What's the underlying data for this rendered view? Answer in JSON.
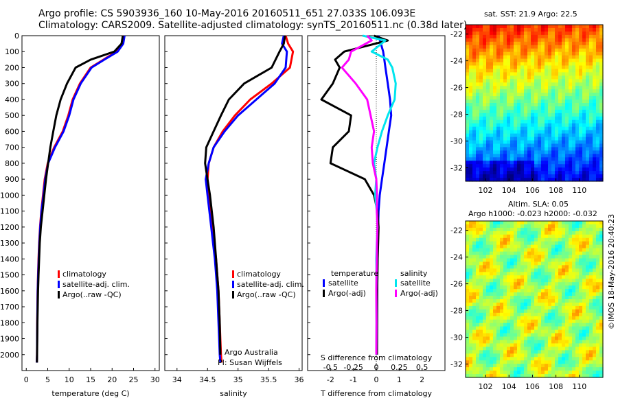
{
  "header": {
    "title_line1": "Argo profile: CS 5903936_160 10-May-2016 20160511_651 27.033S 106.093E",
    "title_line2": "Climatology: CARS2009. Satellite-adjusted climatology: synTS_20160511.nc (0.38d later)"
  },
  "colors": {
    "climatology": "#ff0000",
    "satellite": "#0000ff",
    "argo": "#000000",
    "salinity_sat": "#00e5ee",
    "salinity_argo": "#ff00ff"
  },
  "chart_data": [
    {
      "type": "line",
      "id": "temperature",
      "xlabel": "temperature (deg C)",
      "ylabel": "",
      "xlim": [
        -1,
        31
      ],
      "ylim": [
        2100,
        0
      ],
      "xticks": [
        "0",
        "5",
        "10",
        "15",
        "20",
        "25",
        "30"
      ],
      "yticks": [
        "0",
        "100",
        "200",
        "300",
        "400",
        "500",
        "600",
        "700",
        "800",
        "900",
        "1000",
        "1100",
        "1200",
        "1300",
        "1400",
        "1500",
        "1600",
        "1700",
        "1800",
        "1900",
        "2000"
      ],
      "legend": [
        "climatology",
        "satellite-adj. clim.",
        "Argo(..raw -QC)"
      ],
      "legend_position": "bottom-center",
      "series": [
        {
          "name": "climatology",
          "color": "#ff0000",
          "x": [
            22.6,
            22.3,
            21,
            18,
            15,
            12.5,
            10.8,
            9.8,
            8.5,
            6.5,
            5,
            4.3,
            3.9,
            3.5,
            3.2,
            3,
            2.85,
            2.75,
            2.65,
            2.55,
            2.5,
            2.45
          ],
          "y": [
            0,
            50,
            100,
            150,
            200,
            300,
            400,
            500,
            600,
            700,
            800,
            900,
            1000,
            1100,
            1200,
            1300,
            1400,
            1500,
            1600,
            1800,
            2000,
            2050
          ]
        },
        {
          "name": "satellite-adj. clim.",
          "color": "#0000ff",
          "x": [
            22.9,
            22.6,
            21.3,
            18.2,
            15.2,
            12.7,
            11,
            10,
            8.7,
            6.7,
            5.1,
            4.4,
            4,
            3.55,
            3.25,
            3.05,
            2.9,
            2.78,
            2.67,
            2.56,
            2.5,
            2.45
          ],
          "y": [
            0,
            50,
            100,
            150,
            200,
            300,
            400,
            500,
            600,
            700,
            800,
            900,
            1000,
            1100,
            1200,
            1300,
            1400,
            1500,
            1600,
            1800,
            2000,
            2050
          ]
        },
        {
          "name": "Argo(..raw -QC)",
          "color": "#000000",
          "x": [
            22.5,
            22.2,
            20.5,
            15,
            11.5,
            9.5,
            8,
            7,
            6.3,
            5.6,
            5.1,
            4.6,
            4.2,
            3.8,
            3.4,
            3.15,
            3,
            2.85,
            2.75,
            2.6,
            2.52,
            2.48
          ],
          "y": [
            0,
            50,
            100,
            150,
            200,
            300,
            400,
            500,
            600,
            700,
            800,
            900,
            1000,
            1100,
            1200,
            1300,
            1400,
            1500,
            1600,
            1800,
            2000,
            2050
          ]
        }
      ]
    },
    {
      "type": "line",
      "id": "salinity",
      "xlabel": "salinity",
      "ylabel": "",
      "xlim": [
        33.8,
        36.05
      ],
      "ylim": [
        2100,
        0
      ],
      "xticks": [
        "34",
        "34.5",
        "35",
        "35.5",
        "36"
      ],
      "legend": [
        "climatology",
        "satellite-adj. clim.",
        "Argo(..raw -QC)"
      ],
      "legend_position": "bottom-right",
      "annotation": [
        "Argo Australia",
        "PI: Susan Wijffels"
      ],
      "series": [
        {
          "name": "climatology",
          "color": "#ff0000",
          "x": [
            35.78,
            35.82,
            35.9,
            35.85,
            35.55,
            35.2,
            34.95,
            34.75,
            34.6,
            34.52,
            34.5,
            34.52,
            34.55,
            34.58,
            34.61,
            34.64,
            34.66,
            34.68,
            34.7,
            34.72,
            34.73
          ],
          "y": [
            0,
            50,
            100,
            200,
            300,
            400,
            500,
            600,
            700,
            800,
            900,
            1000,
            1100,
            1200,
            1300,
            1400,
            1500,
            1600,
            1800,
            2000,
            2050
          ]
        },
        {
          "name": "satellite-adj. clim.",
          "color": "#0000ff",
          "x": [
            35.75,
            35.72,
            35.8,
            35.78,
            35.6,
            35.3,
            35,
            34.78,
            34.6,
            34.52,
            34.47,
            34.5,
            34.53,
            34.56,
            34.59,
            34.62,
            34.64,
            34.66,
            34.68,
            34.7,
            34.71
          ],
          "y": [
            0,
            50,
            100,
            200,
            300,
            400,
            500,
            600,
            700,
            800,
            900,
            1000,
            1100,
            1200,
            1300,
            1400,
            1500,
            1600,
            1800,
            2000,
            2050
          ]
        },
        {
          "name": "Argo(..raw -QC)",
          "color": "#000000",
          "x": [
            35.77,
            35.75,
            35.68,
            35.55,
            35.1,
            34.85,
            34.72,
            34.6,
            34.48,
            34.46,
            34.5,
            34.54,
            34.57,
            34.6,
            34.62,
            34.64,
            34.66,
            34.68,
            34.7,
            34.71
          ],
          "y": [
            0,
            50,
            100,
            200,
            300,
            400,
            500,
            600,
            700,
            800,
            900,
            1000,
            1100,
            1200,
            1300,
            1400,
            1500,
            1600,
            1800,
            2000
          ]
        }
      ]
    },
    {
      "type": "line",
      "id": "difference",
      "xlabel": "T difference from climatology",
      "top_label": "S difference from climatology",
      "xlim": [
        -3,
        3
      ],
      "ylim": [
        2100,
        0
      ],
      "xticks": [
        "-2",
        "-1",
        "0",
        "1",
        "2"
      ],
      "sticks": [
        "-0.5",
        "-0.25",
        "0",
        "0.25",
        "0.5"
      ],
      "legend_headers": [
        "temperature",
        "salinity"
      ],
      "legend": [
        "satellite",
        "Argo(-adj)",
        "satellite",
        "Argo(-adj)"
      ],
      "legend_position": "bottom-center",
      "series": [
        {
          "name": "temperature satellite",
          "color": "#0000ff",
          "x": [
            0.1,
            0.2,
            0.3,
            0.35,
            0.4,
            0.5,
            0.6,
            0.65,
            0.55,
            0.45,
            0.35,
            0.25,
            0.15,
            0.1,
            0.08,
            0.06,
            0.05,
            0.04,
            0.04,
            0.03,
            0.03
          ],
          "y": [
            0,
            50,
            100,
            150,
            200,
            300,
            400,
            500,
            600,
            700,
            800,
            900,
            1000,
            1100,
            1200,
            1300,
            1400,
            1500,
            1600,
            1800,
            2000
          ]
        },
        {
          "name": "temperature Argo(-adj)",
          "color": "#000000",
          "x": [
            -0.1,
            0.5,
            -1.4,
            -1.8,
            -1.6,
            -1.9,
            -2.4,
            -1.1,
            -1.2,
            -1.9,
            -2,
            -0.5,
            -0.1,
            0.05,
            0.1,
            0.08,
            0.06,
            0.05,
            0.04,
            0.04,
            0.03
          ],
          "y": [
            0,
            30,
            100,
            150,
            200,
            300,
            400,
            500,
            600,
            700,
            800,
            900,
            1000,
            1100,
            1200,
            1300,
            1400,
            1500,
            1600,
            1800,
            2000
          ]
        },
        {
          "name": "salinity satellite",
          "color": "#00e5ee",
          "x": [
            -0.6,
            0.4,
            -0.2,
            0.5,
            0.7,
            0.85,
            0.8,
            0.5,
            0.25,
            0.05,
            -0.1,
            0,
            -0.05,
            0.02,
            0.05,
            0.02,
            0,
            0.01,
            0,
            0.01,
            0
          ],
          "y": [
            0,
            30,
            100,
            150,
            200,
            300,
            400,
            500,
            600,
            700,
            800,
            900,
            1000,
            1100,
            1200,
            1300,
            1400,
            1500,
            1600,
            1800,
            2000
          ]
        },
        {
          "name": "salinity Argo(-adj)",
          "color": "#ff00ff",
          "x": [
            -0.4,
            -0.2,
            -1.1,
            -1.2,
            -1.5,
            -0.9,
            -0.4,
            -0.25,
            -0.1,
            -0.2,
            -0.15,
            0,
            0.03,
            0.02,
            0.05,
            0.03,
            0.02,
            0.01,
            0,
            0.01,
            0
          ],
          "y": [
            0,
            30,
            100,
            150,
            200,
            300,
            400,
            500,
            600,
            700,
            800,
            900,
            1000,
            1100,
            1200,
            1300,
            1400,
            1500,
            1600,
            1800,
            2000
          ]
        }
      ]
    },
    {
      "type": "heatmap",
      "id": "sst-map",
      "title": "sat. SST: 21.9  Argo: 22.5",
      "xticks": [
        "102",
        "104",
        "106",
        "108",
        "110"
      ],
      "yticks": [
        "-22",
        "-24",
        "-26",
        "-28",
        "-30",
        "-32"
      ],
      "xlim": [
        100.3,
        112
      ],
      "ylim": [
        -33,
        -21.3
      ]
    },
    {
      "type": "heatmap",
      "id": "sla-map",
      "title_line1": "Altim. SLA: 0.05",
      "title_line2": "Argo h1000: -0.023 h2000: -0.032",
      "xticks": [
        "102",
        "104",
        "106",
        "108",
        "110"
      ],
      "yticks": [
        "-22",
        "-24",
        "-26",
        "-28",
        "-30",
        "-32"
      ],
      "xlim": [
        100.3,
        112
      ],
      "ylim": [
        -33,
        -21.3
      ]
    }
  ],
  "footer": {
    "stamp": "©IMOS 18-May-2016 20:40:23"
  }
}
